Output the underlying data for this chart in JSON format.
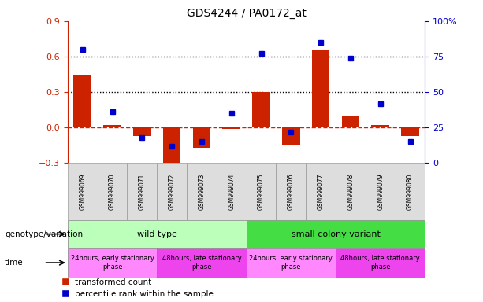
{
  "title": "GDS4244 / PA0172_at",
  "samples": [
    "GSM999069",
    "GSM999070",
    "GSM999071",
    "GSM999072",
    "GSM999073",
    "GSM999074",
    "GSM999075",
    "GSM999076",
    "GSM999077",
    "GSM999078",
    "GSM999079",
    "GSM999080"
  ],
  "transformed_count": [
    0.45,
    0.02,
    -0.07,
    -0.36,
    -0.17,
    -0.01,
    0.3,
    -0.15,
    0.65,
    0.1,
    0.02,
    -0.07
  ],
  "percentile_rank": [
    80,
    36,
    18,
    12,
    15,
    35,
    77,
    22,
    85,
    74,
    42,
    15
  ],
  "bar_color": "#cc2200",
  "dot_color": "#0000cc",
  "left_ylim": [
    -0.3,
    0.9
  ],
  "left_yticks": [
    -0.3,
    0.0,
    0.3,
    0.6,
    0.9
  ],
  "right_ylim": [
    0,
    100
  ],
  "right_yticks": [
    0,
    25,
    50,
    75,
    100
  ],
  "dotted_line_values": [
    0.3,
    0.6
  ],
  "zero_line_color": "#cc2200",
  "dotted_line_color": "black",
  "genotype_groups": [
    {
      "label": "wild type",
      "start": 0,
      "end": 6,
      "color": "#bbffbb"
    },
    {
      "label": "small colony variant",
      "start": 6,
      "end": 12,
      "color": "#44dd44"
    }
  ],
  "time_groups": [
    {
      "label": "24hours, early stationary\nphase",
      "start": 0,
      "end": 3,
      "color": "#ff88ff"
    },
    {
      "label": "48hours, late stationary\nphase",
      "start": 3,
      "end": 6,
      "color": "#ee44ee"
    },
    {
      "label": "24hours, early stationary\nphase",
      "start": 6,
      "end": 9,
      "color": "#ff88ff"
    },
    {
      "label": "48hours, late stationary\nphase",
      "start": 9,
      "end": 12,
      "color": "#ee44ee"
    }
  ],
  "genotype_label": "genotype/variation",
  "time_label": "time",
  "legend_red": "transformed count",
  "legend_blue": "percentile rank within the sample",
  "right_axis_color": "#0000cc",
  "left_axis_color": "#cc2200",
  "tick_color_left": "#cc2200",
  "tick_color_right": "#0000cc",
  "sample_box_color": "#dddddd",
  "sample_box_edge": "#999999"
}
